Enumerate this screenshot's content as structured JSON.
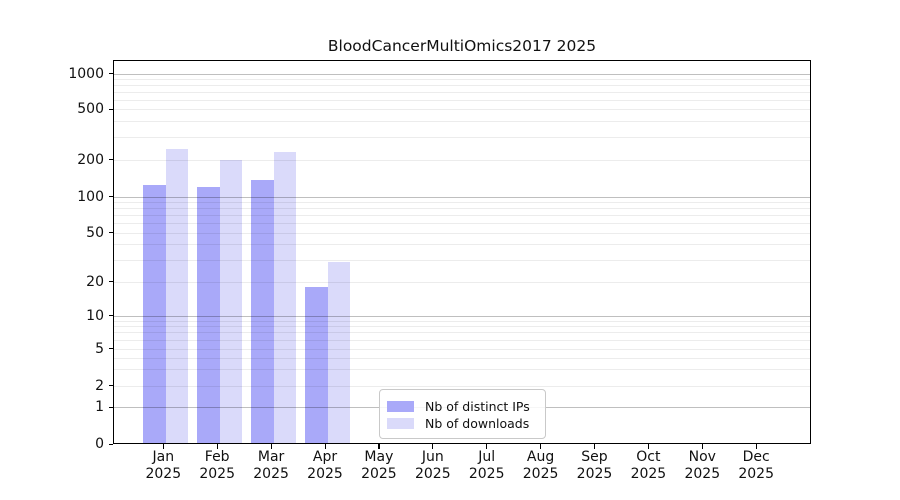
{
  "chart_data": {
    "type": "bar",
    "title": "BloodCancerMultiOmics2017 2025",
    "categories": [
      "Jan 2025",
      "Feb 2025",
      "Mar 2025",
      "Apr 2025",
      "May 2025",
      "Jun 2025",
      "Jul 2025",
      "Aug 2025",
      "Sep 2025",
      "Oct 2025",
      "Nov 2025",
      "Dec 2025"
    ],
    "series": [
      {
        "name": "Nb of distinct IPs",
        "color": "#a9a9f9",
        "values": [
          125,
          120,
          135,
          18,
          null,
          null,
          null,
          null,
          null,
          null,
          null,
          null
        ]
      },
      {
        "name": "Nb of downloads",
        "color": "#dadafa",
        "values": [
          240,
          200,
          230,
          29,
          null,
          null,
          null,
          null,
          null,
          null,
          null,
          null
        ]
      }
    ],
    "xlabel": "",
    "ylabel": "",
    "y_ticks": [
      0,
      1,
      2,
      5,
      10,
      20,
      50,
      100,
      200,
      500,
      1000
    ],
    "y_scale": "log",
    "ylim": [
      0,
      1300
    ],
    "grid": "horizontal, log major (powers of 10) + log minor (2-9 multiples)",
    "legend_position": "inside lower-center-left",
    "colors": {
      "bar_distinct_ips": "#a9a9f9",
      "bar_downloads": "#dadafa",
      "grid_major": "#c0c0c0",
      "grid_minor": "#ececec",
      "axes": "#000000",
      "legend_border": "#c9c9c9"
    }
  }
}
